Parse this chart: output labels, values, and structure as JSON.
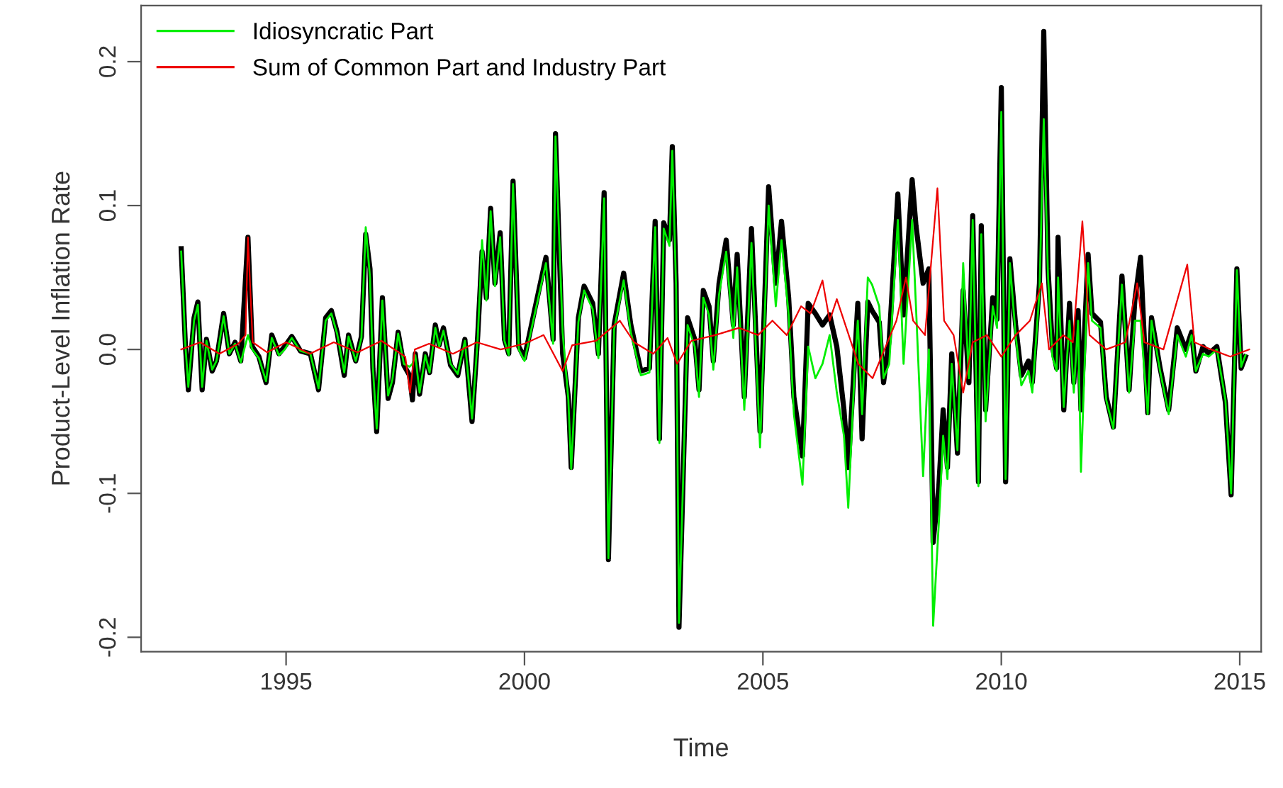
{
  "chart_data": {
    "type": "line",
    "xlabel": "Time",
    "ylabel": "Product-Level Inflation Rate",
    "xlim": [
      1991.96,
      2015.45
    ],
    "ylim": [
      -0.21,
      0.239
    ],
    "xticks": [
      1995,
      2000,
      2005,
      2010,
      2015
    ],
    "yticks": [
      {
        "value": -0.2,
        "label": "-0.2"
      },
      {
        "value": -0.1,
        "label": "-0.1"
      },
      {
        "value": 0.0,
        "label": "0.0"
      },
      {
        "value": 0.1,
        "label": "0.1"
      },
      {
        "value": 0.2,
        "label": "0.2"
      }
    ],
    "grid": false,
    "legend": "top left",
    "marker": "none",
    "line_style": "solid",
    "series": [
      {
        "color": "#000000",
        "x": [
          1992.8,
          1992.89,
          1992.95,
          1993.07,
          1993.15,
          1993.24,
          1993.33,
          1993.45,
          1993.54,
          1993.69,
          1993.81,
          1993.93,
          1994.05,
          1994.2,
          1994.29,
          1994.43,
          1994.58,
          1994.7,
          1994.85,
          1994.97,
          1995.12,
          1995.3,
          1995.51,
          1995.68,
          1995.83,
          1995.95,
          1996.07,
          1996.22,
          1996.31,
          1996.46,
          1996.58,
          1996.67,
          1996.76,
          1996.82,
          1996.9,
          1997.02,
          1997.14,
          1997.23,
          1997.35,
          1997.47,
          1997.59,
          1997.65,
          1997.71,
          1997.8,
          1997.92,
          1998.01,
          1998.13,
          1998.21,
          1998.3,
          1998.45,
          1998.6,
          1998.75,
          1998.9,
          1999.02,
          1999.11,
          1999.2,
          1999.29,
          1999.38,
          1999.49,
          1999.58,
          1999.67,
          1999.76,
          1999.88,
          2000.0,
          2000.21,
          2000.45,
          2000.6,
          2000.65,
          2000.8,
          2000.92,
          2000.98,
          2001.13,
          2001.25,
          2001.43,
          2001.55,
          2001.67,
          2001.76,
          2001.88,
          2002.08,
          2002.23,
          2002.44,
          2002.62,
          2002.74,
          2002.83,
          2002.92,
          2003.04,
          2003.1,
          2003.18,
          2003.24,
          2003.42,
          2003.57,
          2003.66,
          2003.75,
          2003.87,
          2003.96,
          2004.08,
          2004.23,
          2004.38,
          2004.46,
          2004.61,
          2004.76,
          2004.94,
          2005.12,
          2005.27,
          2005.39,
          2005.54,
          2005.65,
          2005.83,
          2005.95,
          2006.1,
          2006.25,
          2006.4,
          2006.55,
          2006.7,
          2006.79,
          2006.93,
          2006.99,
          2007.08,
          2007.2,
          2007.29,
          2007.44,
          2007.53,
          2007.65,
          2007.83,
          2007.95,
          2008.13,
          2008.21,
          2008.36,
          2008.48,
          2008.57,
          2008.69,
          2008.78,
          2008.87,
          2008.96,
          2009.08,
          2009.2,
          2009.32,
          2009.4,
          2009.52,
          2009.58,
          2009.67,
          2009.82,
          2009.91,
          2010.0,
          2010.09,
          2010.18,
          2010.3,
          2010.42,
          2010.57,
          2010.65,
          2010.8,
          2010.89,
          2010.98,
          2011.07,
          2011.16,
          2011.19,
          2011.31,
          2011.43,
          2011.52,
          2011.61,
          2011.67,
          2011.82,
          2011.9,
          2012.08,
          2012.2,
          2012.35,
          2012.53,
          2012.68,
          2012.8,
          2012.92,
          2013.07,
          2013.15,
          2013.33,
          2013.51,
          2013.69,
          2013.87,
          2013.99,
          2014.08,
          2014.23,
          2014.35,
          2014.52,
          2014.7,
          2014.82,
          2014.94,
          2015.03,
          2015.12
        ],
        "values": [
          0.07,
          0.002,
          -0.028,
          0.022,
          0.033,
          -0.028,
          0.007,
          -0.015,
          -0.008,
          0.025,
          -0.003,
          0.005,
          -0.008,
          0.078,
          0.002,
          -0.005,
          -0.023,
          0.01,
          -0.003,
          0.002,
          0.009,
          -0.001,
          -0.003,
          -0.028,
          0.022,
          0.027,
          0.012,
          -0.018,
          0.01,
          -0.008,
          0.009,
          0.08,
          0.056,
          -0.013,
          -0.057,
          0.036,
          -0.034,
          -0.023,
          0.012,
          -0.011,
          -0.018,
          -0.035,
          -0.003,
          -0.031,
          -0.003,
          -0.016,
          0.017,
          0.003,
          0.015,
          -0.011,
          -0.018,
          0.007,
          -0.05,
          0.01,
          0.068,
          0.036,
          0.098,
          0.046,
          0.081,
          0.007,
          -0.003,
          0.117,
          0.002,
          -0.006,
          0.027,
          0.064,
          0.007,
          0.15,
          -0.003,
          -0.033,
          -0.082,
          0.022,
          0.044,
          0.032,
          -0.003,
          0.109,
          -0.146,
          0.017,
          0.053,
          0.017,
          -0.015,
          -0.013,
          0.089,
          -0.062,
          0.088,
          0.076,
          0.141,
          0.046,
          -0.193,
          0.022,
          0.007,
          -0.028,
          0.041,
          0.03,
          -0.008,
          0.046,
          0.076,
          0.017,
          0.066,
          -0.033,
          0.084,
          -0.057,
          0.113,
          0.046,
          0.089,
          0.036,
          -0.033,
          -0.074,
          0.032,
          0.025,
          0.017,
          0.024,
          0.002,
          -0.042,
          -0.082,
          -0.003,
          0.032,
          -0.062,
          0.033,
          0.027,
          0.019,
          -0.023,
          0.007,
          0.108,
          0.024,
          0.118,
          0.086,
          0.046,
          0.056,
          -0.134,
          -0.095,
          -0.042,
          -0.082,
          -0.003,
          -0.072,
          0.041,
          -0.023,
          0.093,
          -0.092,
          0.086,
          -0.042,
          0.036,
          0.021,
          0.182,
          -0.092,
          0.063,
          0.017,
          -0.018,
          -0.008,
          -0.023,
          0.046,
          0.221,
          0.056,
          0.002,
          -0.013,
          0.078,
          -0.042,
          0.032,
          -0.023,
          0.027,
          -0.042,
          0.066,
          0.025,
          0.019,
          -0.033,
          -0.054,
          0.051,
          -0.028,
          0.034,
          0.064,
          -0.044,
          0.022,
          -0.013,
          -0.042,
          0.015,
          0.0,
          0.012,
          -0.015,
          0.002,
          -0.003,
          0.002,
          -0.037,
          -0.101,
          0.056,
          -0.013,
          -0.005
        ]
      },
      {
        "name": "Idiosyncratic Part",
        "color": "#00ee00",
        "x": [
          1992.8,
          1992.89,
          1992.95,
          1993.07,
          1993.15,
          1993.24,
          1993.33,
          1993.45,
          1993.54,
          1993.69,
          1993.81,
          1993.93,
          1994.05,
          1994.2,
          1994.29,
          1994.43,
          1994.58,
          1994.7,
          1994.85,
          1994.97,
          1995.12,
          1995.3,
          1995.51,
          1995.68,
          1995.83,
          1995.95,
          1996.07,
          1996.22,
          1996.31,
          1996.46,
          1996.58,
          1996.67,
          1996.76,
          1996.82,
          1996.9,
          1997.02,
          1997.14,
          1997.23,
          1997.35,
          1997.47,
          1997.59,
          1997.65,
          1997.71,
          1997.8,
          1997.92,
          1998.01,
          1998.13,
          1998.21,
          1998.3,
          1998.45,
          1998.6,
          1998.75,
          1998.9,
          1999.02,
          1999.11,
          1999.2,
          1999.29,
          1999.38,
          1999.49,
          1999.58,
          1999.67,
          1999.76,
          1999.88,
          2000.0,
          2000.21,
          2000.45,
          2000.6,
          2000.65,
          2000.8,
          2000.92,
          2000.98,
          2001.13,
          2001.25,
          2001.43,
          2001.55,
          2001.67,
          2001.76,
          2001.88,
          2002.08,
          2002.23,
          2002.44,
          2002.62,
          2002.74,
          2002.83,
          2002.92,
          2003.04,
          2003.1,
          2003.18,
          2003.24,
          2003.42,
          2003.57,
          2003.66,
          2003.75,
          2003.87,
          2003.96,
          2004.08,
          2004.23,
          2004.38,
          2004.46,
          2004.61,
          2004.76,
          2004.94,
          2005.12,
          2005.27,
          2005.39,
          2005.54,
          2005.65,
          2005.83,
          2005.95,
          2006.1,
          2006.25,
          2006.4,
          2006.55,
          2006.7,
          2006.79,
          2006.93,
          2006.99,
          2007.08,
          2007.2,
          2007.29,
          2007.44,
          2007.53,
          2007.65,
          2007.83,
          2007.95,
          2008.13,
          2008.21,
          2008.36,
          2008.48,
          2008.57,
          2008.69,
          2008.78,
          2008.87,
          2008.96,
          2009.08,
          2009.2,
          2009.32,
          2009.4,
          2009.52,
          2009.58,
          2009.67,
          2009.82,
          2009.91,
          2010.0,
          2010.09,
          2010.18,
          2010.3,
          2010.42,
          2010.57,
          2010.65,
          2010.8,
          2010.89,
          2010.98,
          2011.07,
          2011.16,
          2011.19,
          2011.31,
          2011.43,
          2011.52,
          2011.61,
          2011.67,
          2011.82,
          2011.9,
          2012.08,
          2012.2,
          2012.35,
          2012.53,
          2012.68,
          2012.8,
          2012.92,
          2013.07,
          2013.15,
          2013.33,
          2013.51,
          2013.69,
          2013.87,
          2013.99,
          2014.08,
          2014.23,
          2014.35,
          2014.52,
          2014.7,
          2014.82,
          2014.94,
          2015.03,
          2015.12
        ],
        "values": [
          0.068,
          0.002,
          -0.026,
          0.02,
          0.031,
          -0.026,
          0.006,
          -0.014,
          -0.008,
          0.023,
          -0.003,
          0.004,
          -0.009,
          0.01,
          0.0,
          -0.006,
          -0.022,
          0.008,
          -0.004,
          0.0,
          0.008,
          -0.001,
          -0.003,
          -0.027,
          0.02,
          0.025,
          0.011,
          -0.016,
          0.009,
          -0.008,
          0.008,
          0.085,
          0.05,
          -0.012,
          -0.055,
          0.034,
          -0.032,
          -0.021,
          0.011,
          -0.01,
          -0.012,
          -0.01,
          -0.004,
          -0.03,
          -0.004,
          -0.016,
          0.015,
          0.002,
          0.013,
          -0.01,
          -0.017,
          0.006,
          -0.048,
          0.008,
          0.076,
          0.034,
          0.096,
          0.044,
          0.078,
          0.006,
          -0.004,
          0.115,
          0.0,
          -0.008,
          0.024,
          0.06,
          0.004,
          0.148,
          0.012,
          -0.035,
          -0.083,
          0.019,
          0.041,
          0.028,
          -0.006,
          0.105,
          -0.145,
          0.014,
          0.048,
          0.012,
          -0.018,
          -0.016,
          0.085,
          -0.065,
          0.084,
          0.072,
          0.138,
          0.042,
          -0.19,
          0.017,
          0.002,
          -0.033,
          0.036,
          0.024,
          -0.014,
          0.038,
          0.068,
          0.008,
          0.057,
          -0.042,
          0.074,
          -0.068,
          0.1,
          0.03,
          0.076,
          0.024,
          -0.045,
          -0.094,
          0.002,
          -0.02,
          -0.01,
          0.01,
          -0.03,
          -0.06,
          -0.11,
          -0.01,
          0.02,
          -0.045,
          0.05,
          0.045,
          0.03,
          -0.02,
          -0.01,
          0.09,
          -0.01,
          0.09,
          0.03,
          -0.088,
          0.0,
          -0.192,
          -0.12,
          -0.06,
          -0.09,
          -0.01,
          -0.07,
          0.06,
          -0.02,
          0.09,
          -0.095,
          0.08,
          -0.05,
          0.03,
          0.015,
          0.165,
          -0.09,
          0.06,
          0.01,
          -0.025,
          -0.015,
          -0.03,
          0.04,
          0.16,
          0.05,
          -0.005,
          -0.015,
          0.05,
          -0.04,
          0.02,
          -0.03,
          0.02,
          -0.085,
          0.06,
          0.02,
          0.015,
          -0.035,
          -0.055,
          0.045,
          -0.03,
          0.02,
          0.02,
          -0.045,
          0.02,
          -0.015,
          -0.045,
          0.01,
          -0.005,
          0.01,
          -0.015,
          -0.003,
          -0.005,
          0.0,
          -0.035,
          -0.1,
          0.055,
          -0.012,
          -0.004
        ]
      },
      {
        "name": "Sum of Common Part and Industry Part",
        "color": "#ee0000",
        "x": [
          1992.8,
          1993.2,
          1993.6,
          1994.0,
          1994.15,
          1994.2,
          1994.3,
          1994.6,
          1995.0,
          1995.5,
          1996.0,
          1996.5,
          1997.0,
          1997.5,
          1997.6,
          1997.7,
          1998.0,
          1998.5,
          1999.0,
          1999.5,
          2000.0,
          2000.4,
          2000.8,
          2001.0,
          2001.5,
          2002.0,
          2002.3,
          2002.7,
          2003.0,
          2003.2,
          2003.5,
          2004.0,
          2004.5,
          2004.9,
          2005.2,
          2005.5,
          2005.8,
          2006.0,
          2006.25,
          2006.4,
          2006.55,
          2006.8,
          2007.0,
          2007.3,
          2007.55,
          2007.8,
          2008.0,
          2008.15,
          2008.4,
          2008.66,
          2008.8,
          2009.0,
          2009.2,
          2009.4,
          2009.7,
          2010.0,
          2010.3,
          2010.6,
          2010.85,
          2011.0,
          2011.3,
          2011.5,
          2011.7,
          2011.85,
          2012.2,
          2012.6,
          2012.85,
          2013.0,
          2013.4,
          2013.9,
          2014.05,
          2014.4,
          2014.8,
          2015.2
        ],
        "values": [
          0.0,
          0.005,
          -0.003,
          0.004,
          0.01,
          0.078,
          0.005,
          -0.002,
          0.005,
          -0.003,
          0.005,
          -0.002,
          0.006,
          -0.005,
          -0.03,
          0.0,
          0.004,
          -0.003,
          0.005,
          0.0,
          0.004,
          0.01,
          -0.015,
          0.003,
          0.006,
          0.02,
          0.005,
          -0.003,
          0.008,
          -0.01,
          0.006,
          0.01,
          0.015,
          0.01,
          0.02,
          0.01,
          0.03,
          0.025,
          0.048,
          0.02,
          0.035,
          0.01,
          -0.01,
          -0.02,
          0.0,
          0.02,
          0.05,
          0.02,
          0.01,
          0.112,
          0.02,
          0.01,
          -0.03,
          0.005,
          0.01,
          -0.005,
          0.01,
          0.02,
          0.046,
          0.0,
          0.01,
          0.005,
          0.089,
          0.01,
          0.0,
          0.005,
          0.046,
          0.005,
          0.0,
          0.059,
          0.005,
          0.0,
          -0.005,
          0.0
        ]
      }
    ]
  }
}
